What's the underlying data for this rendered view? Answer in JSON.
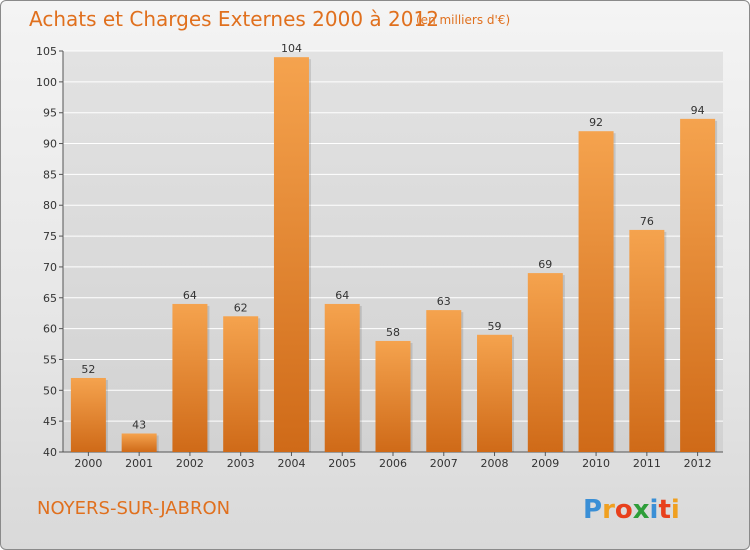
{
  "header": {
    "title": "Achats et Charges Externes 2000 à 2012",
    "subtitle": "(en milliers d'€)"
  },
  "footer": {
    "commune": "NOYERS-SUR-JABRON",
    "logo_text": "Proxiti"
  },
  "colors": {
    "bar_top": "#f5a34e",
    "bar_bottom": "#cf6a18",
    "accent": "#e0701e",
    "grid": "#ffffff"
  },
  "chart_data": {
    "type": "bar",
    "categories": [
      "2000",
      "2001",
      "2002",
      "2003",
      "2004",
      "2005",
      "2006",
      "2007",
      "2008",
      "2009",
      "2010",
      "2011",
      "2012"
    ],
    "values": [
      52,
      43,
      64,
      62,
      104,
      64,
      58,
      63,
      59,
      69,
      92,
      76,
      94
    ],
    "title": "Achats et Charges Externes 2000 à 2012",
    "subtitle": "(en milliers d'€)",
    "xlabel": "",
    "ylabel": "",
    "ylim": [
      40,
      105
    ],
    "yticks": [
      40,
      45,
      50,
      55,
      60,
      65,
      70,
      75,
      80,
      85,
      90,
      95,
      100,
      105
    ],
    "grid": "horizontal",
    "data_labels": true
  }
}
